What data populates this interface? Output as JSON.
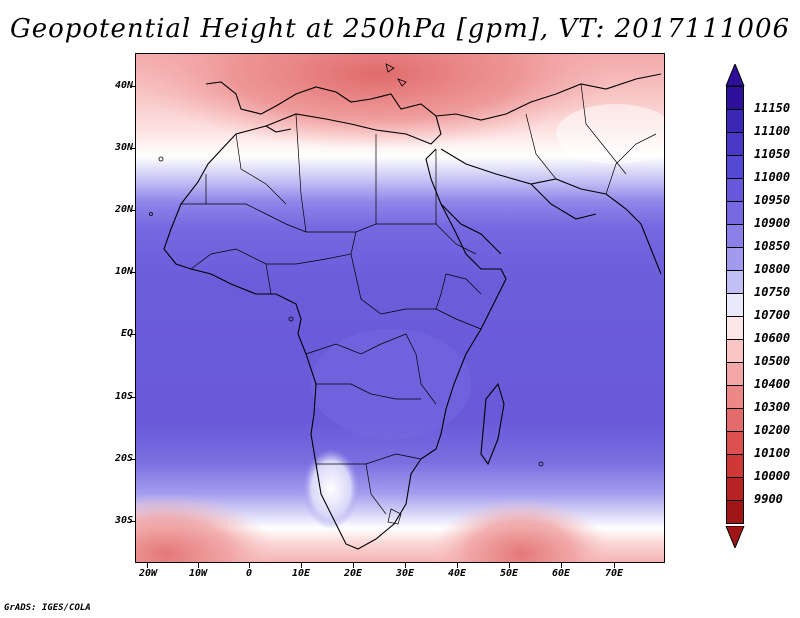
{
  "title": "Geopotential Height at 250hPa [gpm], VT: 2017111006",
  "footer": "GrADS: IGES/COLA",
  "y_axis": {
    "labels": [
      "40N",
      "30N",
      "20N",
      "10N",
      "EQ",
      "10S",
      "20S",
      "30S"
    ]
  },
  "x_axis": {
    "labels": [
      "20W",
      "10W",
      "0",
      "10E",
      "20E",
      "30E",
      "40E",
      "50E",
      "60E",
      "70E"
    ]
  },
  "colorbar": {
    "labels": [
      "11150",
      "11100",
      "11050",
      "11000",
      "10950",
      "10900",
      "10850",
      "10800",
      "10750",
      "10700",
      "10600",
      "10500",
      "10400",
      "10300",
      "10200",
      "10100",
      "10000",
      "9900"
    ],
    "colors": [
      "#2d0f99",
      "#3a28b4",
      "#4838c6",
      "#5548d2",
      "#6658db",
      "#7769e2",
      "#8a80e8",
      "#a19aee",
      "#c2bff4",
      "#e9e9fb",
      "#fde6e6",
      "#f9c5c5",
      "#f3a6a6",
      "#ec8888",
      "#e46b6b",
      "#dc5050",
      "#d03838",
      "#b82424",
      "#a01616"
    ],
    "top_triangle_color": "#2d0f99",
    "bottom_triangle_color": "#a01616"
  },
  "colors": {
    "sea_blue": "#6a5ad9",
    "mid_blue": "#7b6fe0",
    "light_blue": "#c6c2f3",
    "white": "#ffffff",
    "pink": "#f9c9c9",
    "red": "#ee8f8f",
    "dark_red": "#e17171"
  }
}
